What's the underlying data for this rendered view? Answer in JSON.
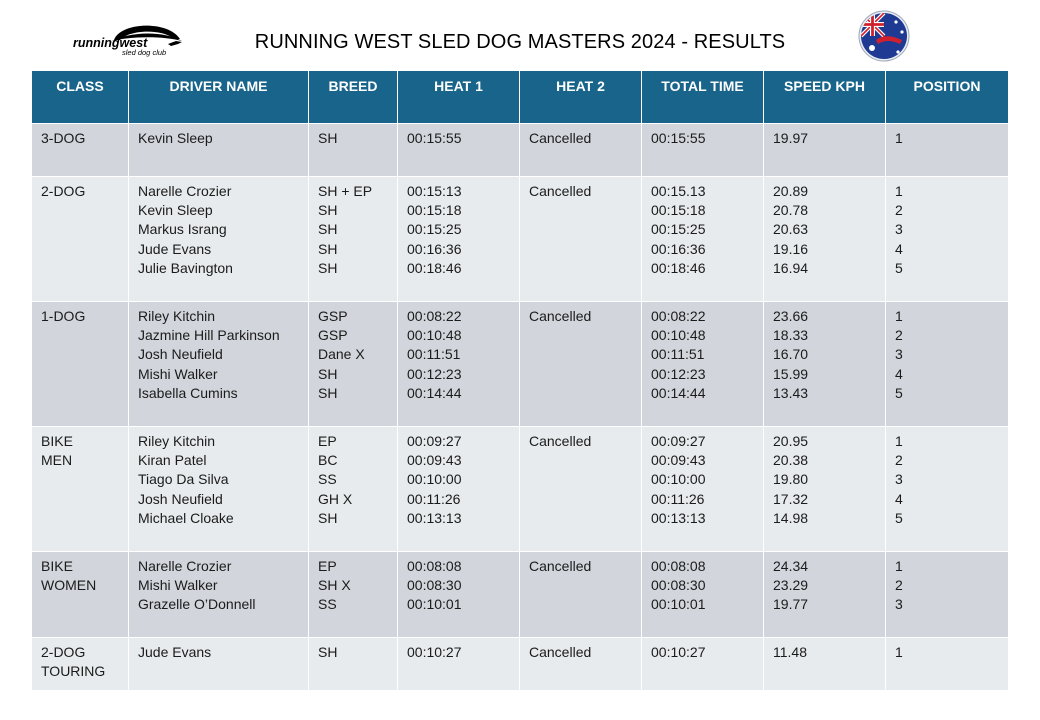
{
  "title": "RUNNING WEST SLED DOG MASTERS 2024 - RESULTS",
  "logo": {
    "text": "runningwest",
    "subtext": "sled dog club"
  },
  "colors": {
    "header_bg": "#18648a",
    "row_dark": "#d2d6dc",
    "row_light": "#e8ebee"
  },
  "headers": [
    "CLASS",
    "DRIVER NAME",
    "BREED",
    "HEAT 1",
    "HEAT 2",
    "TOTAL TIME",
    "SPEED KPH",
    "POSITION"
  ],
  "rows": [
    {
      "class": [
        "3-DOG"
      ],
      "drivers": [
        "Kevin Sleep"
      ],
      "breeds": [
        "SH"
      ],
      "heat1": [
        "00:15:55"
      ],
      "heat2": "Cancelled",
      "total": [
        "00:15:55"
      ],
      "speed": [
        "19.97"
      ],
      "position": [
        "1"
      ]
    },
    {
      "class": [
        "2-DOG"
      ],
      "drivers": [
        "Narelle Crozier",
        "Kevin Sleep",
        "Markus Israng",
        "Jude Evans",
        "Julie Bavington"
      ],
      "breeds": [
        "SH + EP",
        "SH",
        "SH",
        "SH",
        "SH"
      ],
      "heat1": [
        "00:15:13",
        "00:15:18",
        "00:15:25",
        "00:16:36",
        "00:18:46"
      ],
      "heat2": "Cancelled",
      "total": [
        "00:15.13",
        "00:15:18",
        "00:15:25",
        "00:16:36",
        "00:18:46"
      ],
      "speed": [
        "20.89",
        "20.78",
        "20.63",
        "19.16",
        "16.94"
      ],
      "position": [
        "1",
        "2",
        "3",
        "4",
        "5"
      ]
    },
    {
      "class": [
        "1-DOG"
      ],
      "drivers": [
        "Riley Kitchin",
        "Jazmine Hill Parkinson",
        "Josh Neufield",
        "Mishi Walker",
        "Isabella Cumins"
      ],
      "breeds": [
        "GSP",
        "GSP",
        "Dane X",
        "SH",
        "SH"
      ],
      "heat1": [
        "00:08:22",
        "00:10:48",
        "00:11:51",
        "00:12:23",
        "00:14:44"
      ],
      "heat2": "Cancelled",
      "total": [
        "00:08:22",
        "00:10:48",
        "00:11:51",
        "00:12:23",
        "00:14:44"
      ],
      "speed": [
        "23.66",
        "18.33",
        "16.70",
        "15.99",
        "13.43"
      ],
      "position": [
        "1",
        "2",
        "3",
        "4",
        "5"
      ]
    },
    {
      "class": [
        "BIKE",
        "MEN"
      ],
      "drivers": [
        "Riley Kitchin",
        "Kiran Patel",
        "Tiago Da Silva",
        "Josh Neufield",
        "Michael Cloake"
      ],
      "breeds": [
        "EP",
        "BC",
        "SS",
        "GH X",
        "SH"
      ],
      "heat1": [
        "00:09:27",
        "00:09:43",
        "00:10:00",
        "00:11:26",
        "00:13:13"
      ],
      "heat2": "Cancelled",
      "total": [
        "00:09:27",
        "00:09:43",
        "00:10:00",
        "00:11:26",
        "00:13:13"
      ],
      "speed": [
        "20.95",
        "20.38",
        "19.80",
        "17.32",
        "14.98"
      ],
      "position": [
        "1",
        "2",
        "3",
        "4",
        "5"
      ]
    },
    {
      "class": [
        "BIKE",
        "WOMEN"
      ],
      "drivers": [
        "Narelle Crozier",
        "Mishi Walker",
        "Grazelle O’Donnell"
      ],
      "breeds": [
        "EP",
        "SH X",
        "SS"
      ],
      "heat1": [
        "00:08:08",
        "00:08:30",
        "00:10:01"
      ],
      "heat2": "Cancelled",
      "total": [
        "00:08:08",
        "00:08:30",
        "00:10:01"
      ],
      "speed": [
        "24.34",
        "23.29",
        "19.77"
      ],
      "position": [
        "1",
        "2",
        "3"
      ]
    },
    {
      "class": [
        "2-DOG",
        "TOURING"
      ],
      "drivers": [
        "Jude Evans"
      ],
      "breeds": [
        "SH"
      ],
      "heat1": [
        "00:10:27"
      ],
      "heat2": "Cancelled",
      "total": [
        "00:10:27"
      ],
      "speed": [
        "11.48"
      ],
      "position": [
        "1"
      ]
    }
  ]
}
